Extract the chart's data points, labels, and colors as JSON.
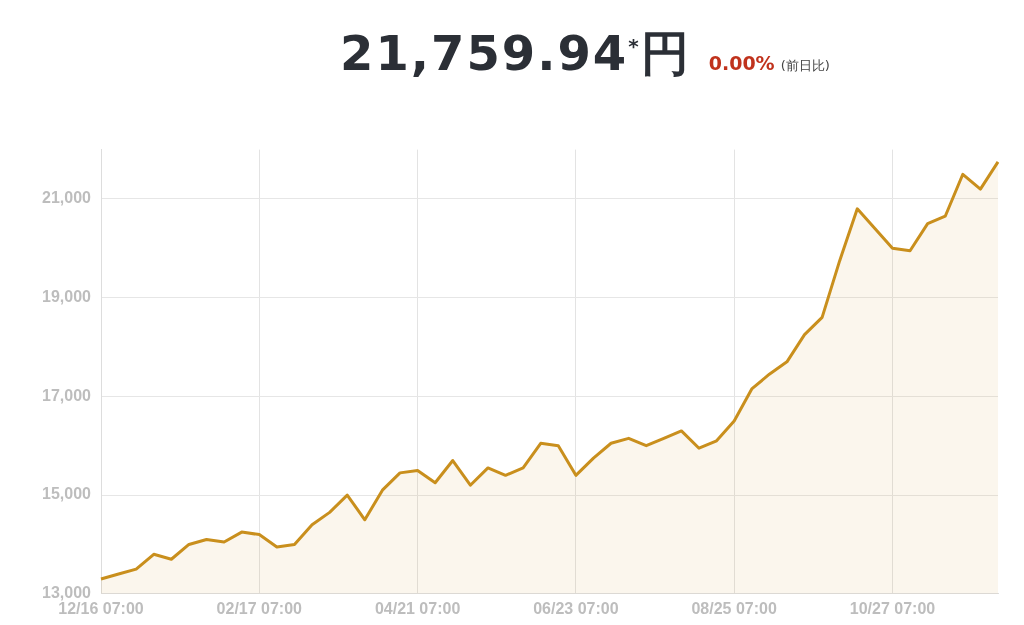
{
  "chart_data": {
    "type": "area",
    "title": "21,759.94$^{*}$円",
    "subtitle": "0.00%",
    "annotations": [
      "(前日比)"
    ],
    "categories": [
      "12/16 07:00",
      null,
      null,
      null,
      null,
      null,
      null,
      null,
      null,
      "02/17 07:00",
      null,
      null,
      null,
      null,
      null,
      null,
      null,
      null,
      "04/21 07:00",
      null,
      null,
      null,
      null,
      null,
      null,
      null,
      null,
      "06/23 07:00",
      null,
      null,
      null,
      null,
      null,
      null,
      null,
      null,
      "08/25 07:00",
      null,
      null,
      null,
      null,
      null,
      null,
      null,
      null,
      "10/27 07:00",
      null,
      null,
      null,
      null,
      null,
      null
    ],
    "series": [
      {
        "color": "#c98f1d",
        "values": [
          13300,
          13400,
          13500,
          13800,
          13700,
          14000,
          14100,
          14050,
          14250,
          14200,
          13950,
          14000,
          14400,
          14650,
          15000,
          14500,
          15100,
          15450,
          15500,
          15250,
          15700,
          15200,
          15550,
          15400,
          15550,
          16050,
          16000,
          15400,
          15750,
          16050,
          16150,
          16000,
          16150,
          16300,
          15950,
          16100,
          16500,
          17150,
          17450,
          17700,
          18250,
          18600,
          19750,
          20800,
          20400,
          20000,
          19950,
          20500,
          20650,
          21500,
          21200,
          21750
        ]
      }
    ],
    "ylim": [
      13000,
      22000
    ],
    "yticks": [
      {
        "value": 13000,
        "label": "13,000"
      },
      {
        "value": 15000,
        "label": "15,000"
      },
      {
        "value": 17000,
        "label": "17,000"
      },
      {
        "value": 19000,
        "label": "19,000"
      },
      {
        "value": 21000,
        "label": "21,000"
      }
    ],
    "grid": true,
    "legend": false,
    "marker": "none",
    "line_style": "solid"
  }
}
